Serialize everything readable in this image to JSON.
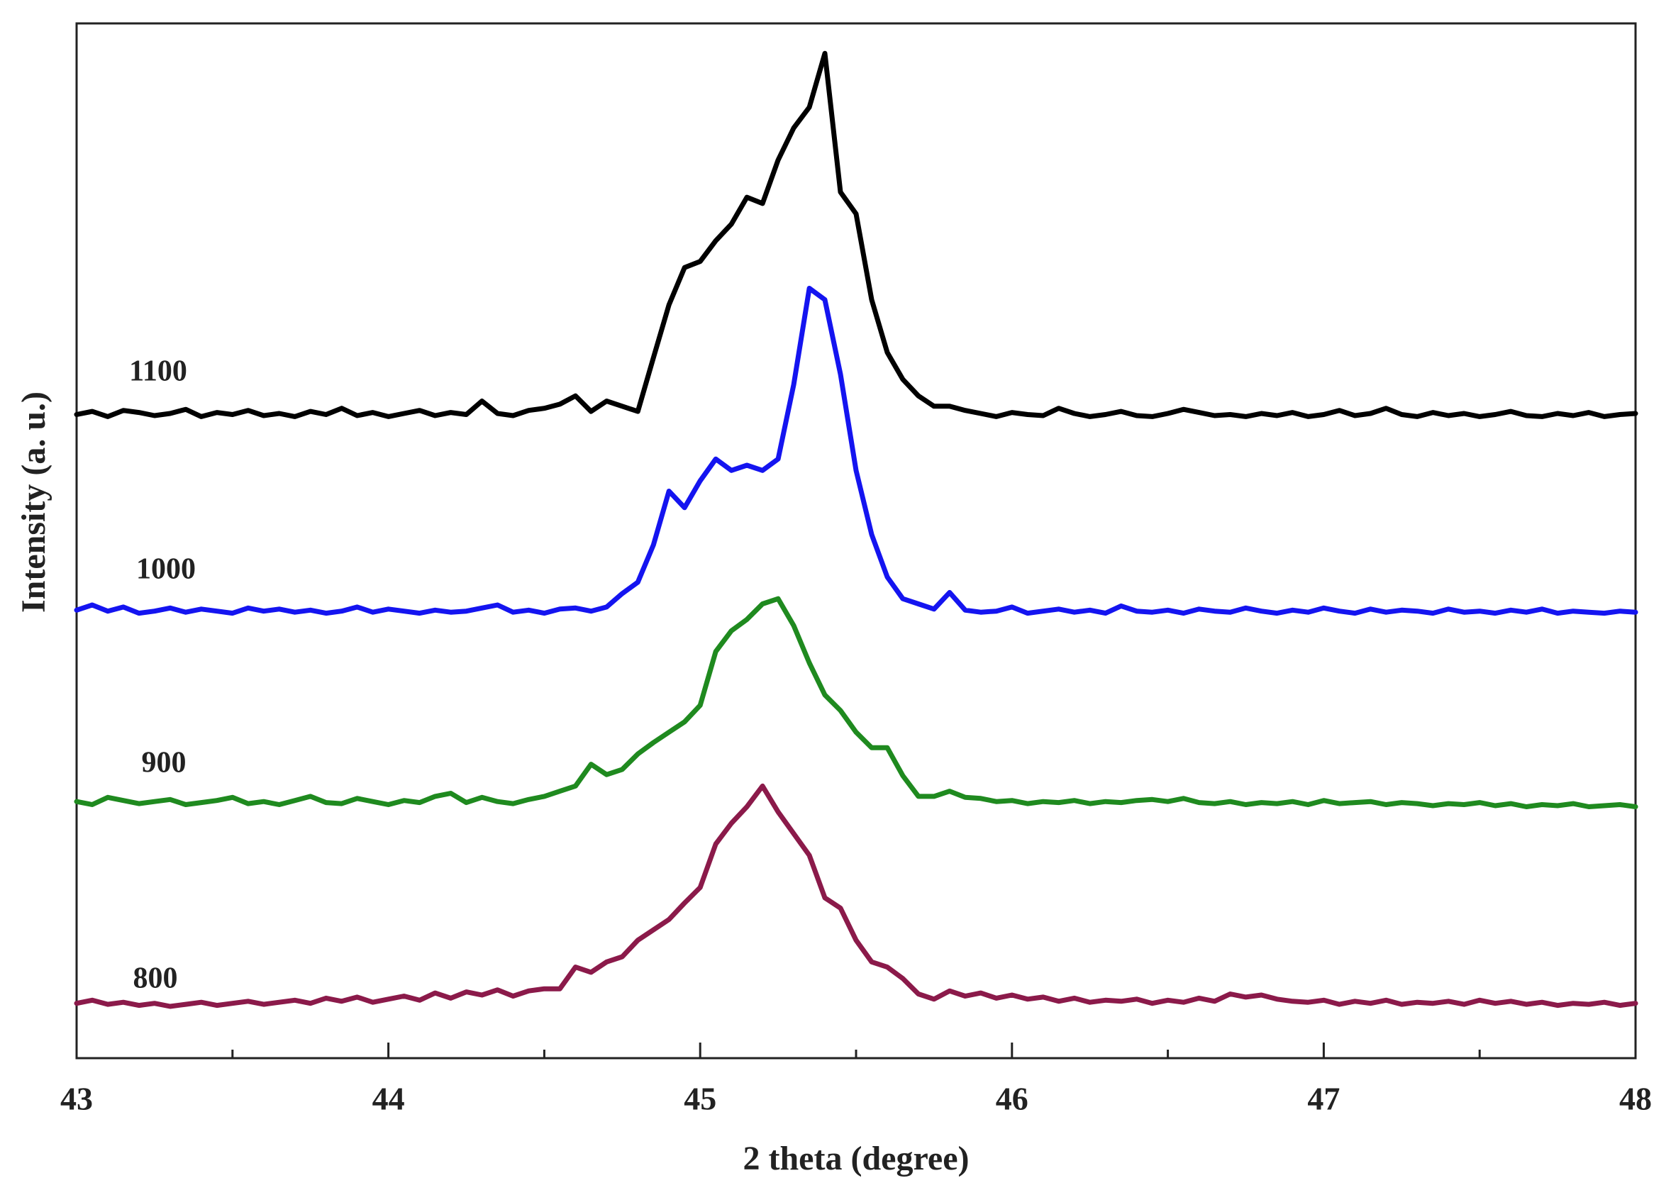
{
  "chart_data": {
    "type": "line",
    "x_label": "2 theta (degree)",
    "y_label": "Intensity (a. u.)",
    "xlim": [
      43,
      48
    ],
    "xticks": [
      43,
      44,
      45,
      46,
      47,
      48
    ],
    "xminorticks": [
      43.5,
      44.5,
      45.5,
      46.5,
      47.5
    ],
    "ylim": [
      0,
      100
    ],
    "x": [
      43,
      43.05,
      43.1,
      43.15,
      43.2,
      43.25,
      43.3,
      43.35,
      43.4,
      43.45,
      43.5,
      43.55,
      43.6,
      43.65,
      43.7,
      43.75,
      43.8,
      43.85,
      43.9,
      43.95,
      44,
      44.05,
      44.1,
      44.15,
      44.2,
      44.25,
      44.3,
      44.35,
      44.4,
      44.45,
      44.5,
      44.55,
      44.6,
      44.65,
      44.7,
      44.75,
      44.8,
      44.85,
      44.9,
      44.95,
      45,
      45.05,
      45.1,
      45.15,
      45.2,
      45.25,
      45.3,
      45.35,
      45.4,
      45.45,
      45.5,
      45.55,
      45.6,
      45.65,
      45.7,
      45.75,
      45.8,
      45.85,
      45.9,
      45.95,
      46,
      46.05,
      46.1,
      46.15,
      46.2,
      46.25,
      46.3,
      46.35,
      46.4,
      46.45,
      46.5,
      46.55,
      46.6,
      46.65,
      46.7,
      46.75,
      46.8,
      46.85,
      46.9,
      46.95,
      47,
      47.05,
      47.1,
      47.15,
      47.2,
      47.25,
      47.3,
      47.35,
      47.4,
      47.45,
      47.5,
      47.55,
      47.6,
      47.65,
      47.7,
      47.75,
      47.8,
      47.85,
      47.9,
      47.95,
      48
    ],
    "series": [
      {
        "name": "1100",
        "color": "#000000",
        "values": [
          62.2,
          62.5,
          62.0,
          62.6,
          62.4,
          62.1,
          62.3,
          62.7,
          62.0,
          62.4,
          62.2,
          62.6,
          62.1,
          62.3,
          62.0,
          62.5,
          62.2,
          62.8,
          62.1,
          62.4,
          62.0,
          62.3,
          62.6,
          62.1,
          62.4,
          62.2,
          63.5,
          62.3,
          62.1,
          62.6,
          62.8,
          63.2,
          64.0,
          62.5,
          63.5,
          63.0,
          62.5,
          67.7,
          72.8,
          76.4,
          77.0,
          79.0,
          80.6,
          83.2,
          82.6,
          86.8,
          89.9,
          91.9,
          97.1,
          83.7,
          81.6,
          73.3,
          68.2,
          65.6,
          64.0,
          63.0,
          63.0,
          62.6,
          62.3,
          62.0,
          62.4,
          62.2,
          62.1,
          62.8,
          62.3,
          62.0,
          62.2,
          62.5,
          62.1,
          62.0,
          62.3,
          62.7,
          62.4,
          62.1,
          62.2,
          62.0,
          62.3,
          62.1,
          62.4,
          62.0,
          62.2,
          62.6,
          62.1,
          62.3,
          62.8,
          62.2,
          62.0,
          62.4,
          62.1,
          62.3,
          62.0,
          62.2,
          62.5,
          62.1,
          62.0,
          62.3,
          62.1,
          62.4,
          62.0,
          62.2,
          62.3
        ]
      },
      {
        "name": "1000",
        "color": "#1414f0",
        "values": [
          43.3,
          43.8,
          43.2,
          43.6,
          43.0,
          43.2,
          43.5,
          43.1,
          43.4,
          43.2,
          43.0,
          43.5,
          43.2,
          43.4,
          43.1,
          43.3,
          43.0,
          43.2,
          43.6,
          43.1,
          43.4,
          43.2,
          43.0,
          43.3,
          43.1,
          43.2,
          43.5,
          43.8,
          43.1,
          43.3,
          43.0,
          43.4,
          43.5,
          43.2,
          43.6,
          44.9,
          46.0,
          49.6,
          54.8,
          53.2,
          55.8,
          57.9,
          56.8,
          57.3,
          56.8,
          57.9,
          65.1,
          74.4,
          73.3,
          66.1,
          56.8,
          50.6,
          46.5,
          44.4,
          43.9,
          43.4,
          45.0,
          43.3,
          43.1,
          43.2,
          43.6,
          43.0,
          43.2,
          43.4,
          43.1,
          43.3,
          43.0,
          43.7,
          43.2,
          43.1,
          43.3,
          43.0,
          43.4,
          43.2,
          43.1,
          43.5,
          43.2,
          43.0,
          43.3,
          43.1,
          43.5,
          43.2,
          43.0,
          43.4,
          43.1,
          43.3,
          43.2,
          43.0,
          43.4,
          43.1,
          43.2,
          43.0,
          43.3,
          43.1,
          43.4,
          43.0,
          43.2,
          43.1,
          43.0,
          43.2,
          43.1
        ]
      },
      {
        "name": "900",
        "color": "#1f8a1f",
        "values": [
          24.8,
          24.5,
          25.2,
          24.9,
          24.6,
          24.8,
          25.0,
          24.5,
          24.7,
          24.9,
          25.2,
          24.6,
          24.8,
          24.5,
          24.9,
          25.3,
          24.7,
          24.6,
          25.1,
          24.8,
          24.5,
          24.9,
          24.7,
          25.3,
          25.6,
          24.7,
          25.2,
          24.8,
          24.6,
          25.0,
          25.3,
          25.8,
          26.3,
          28.4,
          27.4,
          27.9,
          29.4,
          30.5,
          31.5,
          32.5,
          34.1,
          39.3,
          41.3,
          42.4,
          43.9,
          44.4,
          41.8,
          38.2,
          35.1,
          33.6,
          31.5,
          30.0,
          30.0,
          27.3,
          25.3,
          25.3,
          25.8,
          25.2,
          25.1,
          24.8,
          24.9,
          24.6,
          24.8,
          24.7,
          24.9,
          24.6,
          24.8,
          24.7,
          24.9,
          25.0,
          24.8,
          25.1,
          24.7,
          24.6,
          24.8,
          24.5,
          24.7,
          24.6,
          24.8,
          24.5,
          24.9,
          24.6,
          24.7,
          24.8,
          24.5,
          24.7,
          24.6,
          24.4,
          24.6,
          24.5,
          24.7,
          24.4,
          24.6,
          24.3,
          24.5,
          24.4,
          24.6,
          24.3,
          24.4,
          24.5,
          24.3
        ]
      },
      {
        "name": "800",
        "color": "#8b1a4a",
        "values": [
          5.3,
          5.6,
          5.2,
          5.4,
          5.1,
          5.3,
          5.0,
          5.2,
          5.4,
          5.1,
          5.3,
          5.5,
          5.2,
          5.4,
          5.6,
          5.3,
          5.8,
          5.5,
          5.9,
          5.4,
          5.7,
          6.0,
          5.6,
          6.3,
          5.8,
          6.4,
          6.1,
          6.6,
          6.0,
          6.5,
          6.7,
          6.7,
          8.8,
          8.3,
          9.3,
          9.8,
          11.4,
          12.4,
          13.4,
          15.0,
          16.5,
          20.7,
          22.7,
          24.3,
          26.3,
          23.8,
          21.7,
          19.6,
          15.5,
          14.5,
          11.4,
          9.3,
          8.8,
          7.7,
          6.2,
          5.7,
          6.5,
          6.0,
          6.3,
          5.8,
          6.1,
          5.7,
          5.9,
          5.5,
          5.8,
          5.4,
          5.6,
          5.5,
          5.7,
          5.3,
          5.6,
          5.4,
          5.8,
          5.5,
          6.2,
          5.9,
          6.1,
          5.7,
          5.5,
          5.4,
          5.6,
          5.2,
          5.5,
          5.3,
          5.6,
          5.2,
          5.4,
          5.3,
          5.5,
          5.2,
          5.6,
          5.3,
          5.5,
          5.2,
          5.4,
          5.1,
          5.3,
          5.2,
          5.4,
          5.1,
          5.3
        ]
      }
    ]
  }
}
